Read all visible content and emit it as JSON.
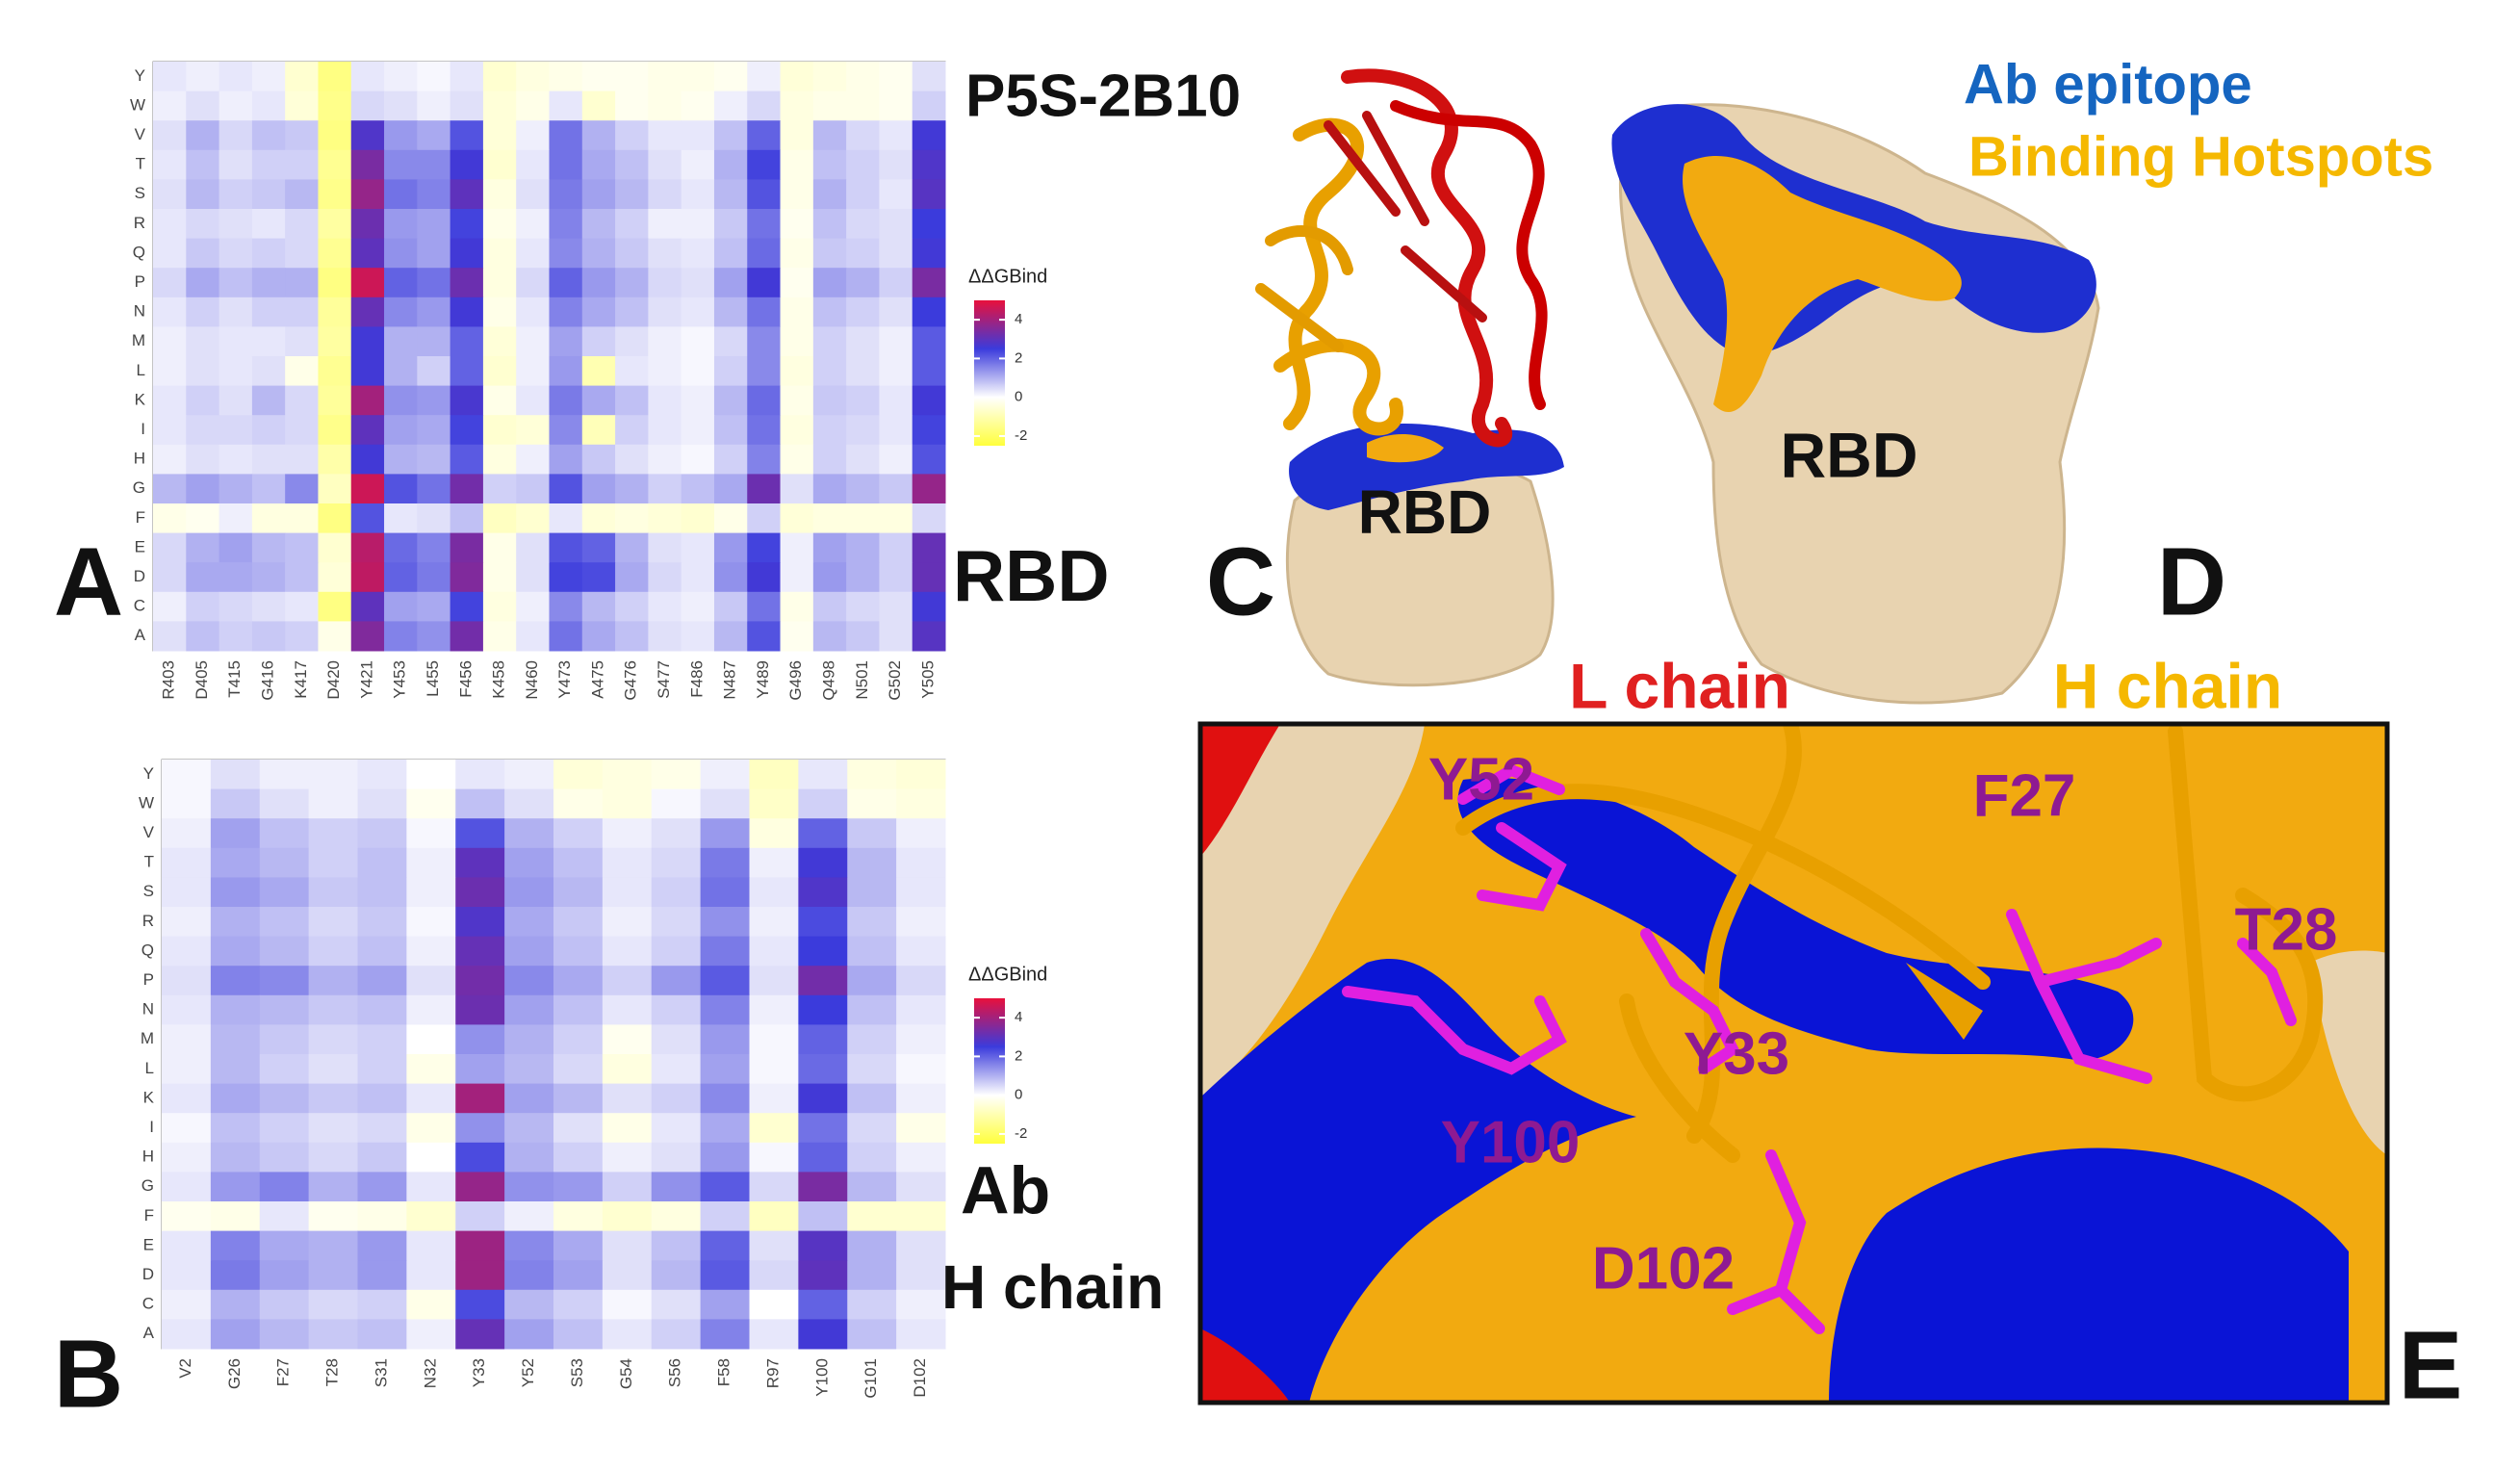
{
  "chart_data": [
    {
      "type": "heatmap",
      "panel_label": "A",
      "annotations": [
        "P5S-2B10",
        "RBD"
      ],
      "x": [
        "R403",
        "D405",
        "T415",
        "G416",
        "K417",
        "D420",
        "Y421",
        "Y453",
        "L455",
        "F456",
        "K458",
        "N460",
        "Y473",
        "A475",
        "G476",
        "S477",
        "F486",
        "N487",
        "Y489",
        "G496",
        "Q498",
        "N501",
        "G502",
        "Y505"
      ],
      "y": [
        "Y",
        "W",
        "V",
        "T",
        "S",
        "R",
        "Q",
        "P",
        "N",
        "M",
        "L",
        "K",
        "I",
        "H",
        "G",
        "F",
        "E",
        "D",
        "C",
        "A"
      ],
      "values": [
        [
          0.3,
          0.2,
          0.3,
          0.2,
          -0.6,
          -1.6,
          0.3,
          0.2,
          0.1,
          0.3,
          -0.6,
          -0.4,
          -0.3,
          -0.2,
          -0.2,
          -0.3,
          -0.3,
          -0.2,
          0.2,
          -0.5,
          -0.4,
          -0.3,
          -0.2,
          0.4
        ],
        [
          0.2,
          0.4,
          0.2,
          0.3,
          -0.5,
          -1.5,
          0.5,
          0.4,
          0.2,
          0.4,
          -0.5,
          -0.3,
          0.3,
          -0.6,
          -0.2,
          -0.3,
          -0.2,
          0.2,
          0.5,
          -0.4,
          -0.3,
          -0.3,
          -0.2,
          0.6
        ],
        [
          0.4,
          1.0,
          0.5,
          0.8,
          0.7,
          -1.6,
          2.8,
          1.3,
          1.1,
          2.2,
          -0.5,
          0.2,
          1.8,
          1.0,
          0.6,
          0.3,
          0.3,
          0.8,
          2.0,
          -0.4,
          0.9,
          0.5,
          0.3,
          2.6
        ],
        [
          0.3,
          0.8,
          0.4,
          0.6,
          0.6,
          -1.4,
          3.4,
          1.5,
          1.5,
          2.6,
          -0.6,
          0.3,
          1.8,
          1.1,
          0.8,
          0.4,
          0.2,
          1.0,
          2.4,
          -0.3,
          0.8,
          0.6,
          0.4,
          2.8
        ],
        [
          0.4,
          0.9,
          0.6,
          0.7,
          0.9,
          -1.5,
          3.8,
          1.8,
          1.6,
          3.0,
          -0.4,
          0.4,
          1.7,
          1.2,
          0.9,
          0.5,
          0.3,
          0.9,
          2.2,
          -0.3,
          1.0,
          0.6,
          0.3,
          2.9
        ],
        [
          0.3,
          0.5,
          0.4,
          0.3,
          0.5,
          -1.2,
          3.2,
          1.3,
          1.2,
          2.4,
          -0.3,
          0.2,
          1.6,
          0.9,
          0.6,
          0.2,
          0.2,
          0.7,
          1.8,
          -0.2,
          0.8,
          0.5,
          0.4,
          2.5
        ],
        [
          0.3,
          0.7,
          0.5,
          0.6,
          0.5,
          -1.4,
          3.0,
          1.4,
          1.2,
          2.6,
          -0.4,
          0.3,
          1.5,
          1.0,
          0.7,
          0.4,
          0.3,
          0.8,
          1.9,
          -0.3,
          0.7,
          0.6,
          0.4,
          2.6
        ],
        [
          0.5,
          1.1,
          0.8,
          1.0,
          1.0,
          -1.6,
          4.6,
          2.0,
          1.8,
          3.2,
          -0.4,
          0.5,
          2.0,
          1.3,
          1.0,
          0.5,
          0.4,
          1.2,
          2.6,
          -0.2,
          1.2,
          1.0,
          0.6,
          3.4
        ],
        [
          0.3,
          0.6,
          0.4,
          0.6,
          0.6,
          -1.3,
          3.1,
          1.5,
          1.3,
          2.6,
          -0.3,
          0.3,
          1.6,
          1.1,
          0.8,
          0.4,
          0.3,
          0.9,
          1.8,
          -0.3,
          0.8,
          0.6,
          0.4,
          2.5
        ],
        [
          0.2,
          0.4,
          0.3,
          0.3,
          0.4,
          -1.2,
          2.6,
          1.0,
          1.0,
          2.0,
          -0.5,
          0.2,
          1.2,
          0.6,
          0.4,
          0.2,
          0.1,
          0.5,
          1.5,
          -0.3,
          0.6,
          0.4,
          0.2,
          2.1
        ],
        [
          0.2,
          0.4,
          0.3,
          0.4,
          -0.3,
          -1.4,
          2.6,
          1.0,
          0.6,
          2.0,
          -0.6,
          0.2,
          1.3,
          -1.0,
          0.3,
          0.2,
          0.1,
          0.6,
          1.5,
          -0.4,
          0.6,
          0.4,
          0.2,
          2.1
        ],
        [
          0.3,
          0.6,
          0.4,
          0.9,
          0.5,
          -1.3,
          4.0,
          1.4,
          1.3,
          2.7,
          -0.3,
          0.3,
          1.7,
          1.1,
          0.8,
          0.3,
          0.2,
          0.9,
          1.9,
          -0.3,
          0.7,
          0.6,
          0.3,
          2.6
        ],
        [
          0.3,
          0.5,
          0.5,
          0.6,
          0.5,
          -1.5,
          3.0,
          1.2,
          1.1,
          2.4,
          -0.6,
          -0.5,
          1.5,
          -0.9,
          0.6,
          0.3,
          0.2,
          0.8,
          1.8,
          -0.4,
          0.6,
          0.5,
          0.3,
          2.4
        ],
        [
          0.2,
          0.4,
          0.3,
          0.4,
          0.4,
          -1.1,
          2.6,
          1.0,
          0.9,
          2.1,
          -0.4,
          0.2,
          1.2,
          0.7,
          0.4,
          0.2,
          0.1,
          0.6,
          1.6,
          -0.3,
          0.6,
          0.4,
          0.2,
          2.2
        ],
        [
          0.9,
          1.2,
          1.0,
          0.8,
          1.5,
          -0.8,
          4.6,
          2.2,
          1.8,
          3.3,
          0.6,
          0.7,
          2.2,
          1.2,
          1.0,
          0.6,
          0.8,
          1.1,
          3.2,
          0.4,
          1.1,
          0.9,
          0.7,
          3.8
        ],
        [
          -0.3,
          -0.2,
          0.2,
          -0.4,
          -0.4,
          -1.6,
          2.2,
          0.3,
          0.4,
          0.8,
          -0.8,
          -0.6,
          0.3,
          -0.5,
          -0.4,
          -0.5,
          -0.6,
          -0.3,
          0.6,
          -0.5,
          -0.4,
          -0.4,
          -0.4,
          0.5
        ],
        [
          0.5,
          1.0,
          1.2,
          0.9,
          0.8,
          -0.6,
          4.3,
          1.9,
          1.6,
          3.4,
          -0.3,
          0.4,
          2.2,
          2.0,
          1.0,
          0.4,
          0.3,
          1.3,
          2.4,
          0.2,
          1.2,
          1.0,
          0.6,
          3.1
        ],
        [
          0.5,
          1.1,
          1.1,
          1.0,
          0.8,
          -0.5,
          4.4,
          2.0,
          1.7,
          3.5,
          -0.3,
          0.4,
          2.4,
          2.3,
          1.1,
          0.5,
          0.3,
          1.4,
          2.6,
          0.2,
          1.3,
          1.0,
          0.6,
          3.1
        ],
        [
          0.2,
          0.6,
          0.5,
          0.4,
          0.3,
          -1.6,
          3.0,
          1.2,
          1.1,
          2.4,
          -0.4,
          0.2,
          1.5,
          0.9,
          0.6,
          0.3,
          0.2,
          0.7,
          1.8,
          -0.3,
          0.7,
          0.5,
          0.4,
          2.6
        ],
        [
          0.4,
          0.8,
          0.6,
          0.7,
          0.6,
          -0.3,
          3.5,
          1.6,
          1.4,
          3.3,
          -0.3,
          0.3,
          1.8,
          1.1,
          0.8,
          0.4,
          0.3,
          0.9,
          2.2,
          -0.2,
          0.9,
          0.7,
          0.4,
          2.9
        ]
      ],
      "colorbar_title": "ΔΔGBind",
      "clim": [
        -2.5,
        5
      ],
      "cticks": [
        4,
        2,
        0,
        -2
      ],
      "colors": [
        "#ffff3c",
        "#ffffff",
        "#3b3bdc",
        "#e8103c"
      ]
    },
    {
      "type": "heatmap",
      "panel_label": "B",
      "annotations": [
        "Ab",
        "H chain"
      ],
      "x": [
        "V2",
        "G26",
        "F27",
        "T28",
        "S31",
        "N32",
        "Y33",
        "Y52",
        "S53",
        "G54",
        "S56",
        "F58",
        "R97",
        "Y100",
        "G101",
        "D102"
      ],
      "y": [
        "Y",
        "W",
        "V",
        "T",
        "S",
        "R",
        "Q",
        "P",
        "N",
        "M",
        "L",
        "K",
        "I",
        "H",
        "G",
        "F",
        "E",
        "D",
        "C",
        "A"
      ],
      "values": [
        [
          0.1,
          0.4,
          0.2,
          0.2,
          0.3,
          0.0,
          0.3,
          0.2,
          -0.5,
          -0.4,
          -0.3,
          0.2,
          -0.8,
          0.3,
          -0.4,
          -0.5
        ],
        [
          0.1,
          0.7,
          0.4,
          0.2,
          0.4,
          -0.2,
          0.8,
          0.4,
          -0.3,
          -0.4,
          0.1,
          0.4,
          -0.7,
          0.6,
          -0.3,
          -0.4
        ],
        [
          0.2,
          1.2,
          0.8,
          0.6,
          0.7,
          0.1,
          2.2,
          1.0,
          0.6,
          0.2,
          0.4,
          1.3,
          -0.4,
          2.0,
          0.7,
          0.2
        ],
        [
          0.3,
          1.1,
          0.9,
          0.6,
          0.8,
          0.2,
          3.0,
          1.2,
          0.8,
          0.3,
          0.5,
          1.7,
          0.2,
          2.6,
          0.9,
          0.3
        ],
        [
          0.3,
          1.3,
          1.1,
          0.7,
          0.8,
          0.2,
          3.2,
          1.3,
          0.9,
          0.3,
          0.6,
          1.8,
          0.3,
          2.8,
          0.9,
          0.3
        ],
        [
          0.2,
          1.0,
          0.8,
          0.5,
          0.7,
          0.1,
          2.8,
          1.1,
          0.7,
          0.2,
          0.5,
          1.4,
          0.2,
          2.3,
          0.7,
          0.2
        ],
        [
          0.3,
          1.1,
          0.9,
          0.6,
          0.8,
          0.2,
          3.1,
          1.2,
          0.8,
          0.3,
          0.6,
          1.7,
          0.3,
          2.5,
          0.8,
          0.3
        ],
        [
          0.4,
          1.6,
          1.5,
          1.0,
          1.2,
          0.4,
          3.3,
          1.5,
          1.1,
          0.6,
          1.3,
          2.1,
          0.4,
          3.3,
          1.1,
          0.5
        ],
        [
          0.3,
          1.0,
          0.9,
          0.7,
          0.8,
          0.2,
          3.2,
          1.2,
          0.8,
          0.3,
          0.6,
          1.6,
          0.2,
          2.5,
          0.8,
          0.3
        ],
        [
          0.2,
          0.9,
          0.7,
          0.5,
          0.6,
          0.0,
          1.4,
          1.0,
          0.6,
          -0.2,
          0.4,
          1.3,
          0.1,
          2.0,
          0.6,
          0.2
        ],
        [
          0.2,
          0.9,
          0.6,
          0.4,
          0.6,
          -0.3,
          1.2,
          0.9,
          0.5,
          -0.4,
          0.3,
          1.2,
          0.1,
          1.9,
          0.5,
          0.1
        ],
        [
          0.3,
          1.1,
          0.9,
          0.7,
          0.8,
          0.3,
          4.0,
          1.2,
          0.9,
          0.4,
          0.6,
          1.5,
          0.2,
          2.6,
          0.8,
          0.2
        ],
        [
          0.1,
          0.8,
          0.6,
          0.4,
          0.5,
          -0.3,
          1.4,
          0.9,
          0.4,
          -0.3,
          0.3,
          1.1,
          -0.6,
          1.8,
          0.5,
          -0.3
        ],
        [
          0.2,
          0.9,
          0.7,
          0.5,
          0.7,
          0.0,
          2.3,
          1.0,
          0.6,
          0.2,
          0.4,
          1.3,
          0.1,
          2.0,
          0.6,
          0.2
        ],
        [
          0.3,
          1.3,
          1.6,
          1.0,
          1.3,
          0.3,
          3.8,
          1.4,
          1.3,
          0.6,
          1.4,
          2.1,
          0.5,
          3.4,
          0.9,
          0.4
        ],
        [
          -0.2,
          -0.3,
          0.3,
          -0.2,
          -0.3,
          -0.6,
          0.6,
          0.2,
          -0.4,
          -0.6,
          -0.4,
          0.6,
          -0.8,
          0.8,
          -0.6,
          -0.6
        ],
        [
          0.3,
          1.6,
          1.1,
          1.0,
          1.3,
          0.3,
          3.9,
          1.5,
          1.1,
          0.4,
          0.8,
          2.0,
          0.4,
          2.9,
          1.0,
          0.4
        ],
        [
          0.3,
          1.7,
          1.2,
          1.0,
          1.3,
          0.3,
          3.9,
          1.6,
          1.2,
          0.4,
          0.9,
          2.1,
          0.5,
          3.0,
          1.0,
          0.4
        ],
        [
          0.2,
          1.0,
          0.7,
          0.5,
          0.6,
          -0.3,
          2.3,
          0.9,
          0.6,
          0.1,
          0.4,
          1.2,
          0.0,
          2.0,
          0.6,
          0.2
        ],
        [
          0.3,
          1.2,
          0.9,
          0.7,
          0.8,
          0.2,
          3.1,
          1.2,
          0.8,
          0.3,
          0.6,
          1.6,
          0.3,
          2.6,
          0.8,
          0.3
        ]
      ],
      "colorbar_title": "ΔΔGBind",
      "clim": [
        -2.5,
        5
      ],
      "cticks": [
        4,
        2,
        0,
        -2
      ],
      "colors": [
        "#ffff3c",
        "#ffffff",
        "#3b3bdc",
        "#e8103c"
      ]
    }
  ],
  "panel_c": {
    "label": "C",
    "text": "RBD"
  },
  "panel_d": {
    "label": "D",
    "text": "RBD",
    "legend": [
      "Ab epitope",
      "Binding Hotspots"
    ]
  },
  "panel_e": {
    "label": "E",
    "chain_labels": [
      "L chain",
      "H chain"
    ],
    "residues": [
      "Y52",
      "F27",
      "T28",
      "Y33",
      "Y100",
      "D102"
    ]
  }
}
